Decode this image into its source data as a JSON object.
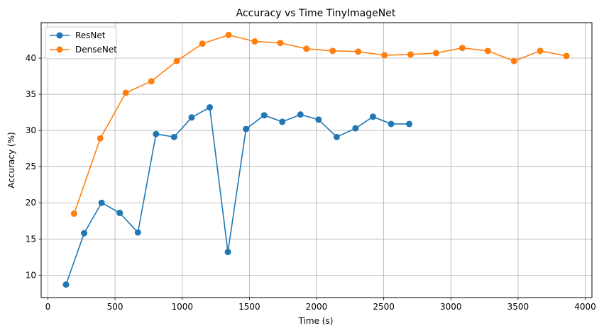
{
  "chart_data": {
    "type": "line",
    "title": "Accuracy vs Time TinyImageNet",
    "xlabel": "Time (s)",
    "ylabel": "Accuracy (%)",
    "xlim": [
      -50,
      4050
    ],
    "ylim": [
      6.9,
      44.9
    ],
    "x_ticks": [
      0,
      500,
      1000,
      1500,
      2000,
      2500,
      3000,
      3500,
      4000
    ],
    "y_ticks": [
      10,
      15,
      20,
      25,
      30,
      35,
      40
    ],
    "grid": true,
    "legend_position": "top-left",
    "series": [
      {
        "name": "ResNet",
        "color": "#1f77b4",
        "points": [
          [
            135,
            8.7
          ],
          [
            270,
            15.8
          ],
          [
            400,
            20.0
          ],
          [
            535,
            18.6
          ],
          [
            670,
            15.9
          ],
          [
            805,
            29.5
          ],
          [
            940,
            29.1
          ],
          [
            1070,
            31.8
          ],
          [
            1205,
            33.2
          ],
          [
            1340,
            13.2
          ],
          [
            1475,
            30.2
          ],
          [
            1610,
            32.1
          ],
          [
            1745,
            31.2
          ],
          [
            1880,
            32.2
          ],
          [
            2015,
            31.5
          ],
          [
            2150,
            29.1
          ],
          [
            2290,
            30.3
          ],
          [
            2420,
            31.9
          ],
          [
            2555,
            30.9
          ],
          [
            2690,
            30.9
          ]
        ]
      },
      {
        "name": "DenseNet",
        "color": "#ff7f0e",
        "points": [
          [
            195,
            18.5
          ],
          [
            390,
            28.9
          ],
          [
            580,
            35.2
          ],
          [
            770,
            36.8
          ],
          [
            960,
            39.6
          ],
          [
            1150,
            42.0
          ],
          [
            1345,
            43.2
          ],
          [
            1540,
            42.3
          ],
          [
            1730,
            42.1
          ],
          [
            1925,
            41.3
          ],
          [
            2120,
            41.0
          ],
          [
            2310,
            40.9
          ],
          [
            2505,
            40.4
          ],
          [
            2700,
            40.5
          ],
          [
            2890,
            40.7
          ],
          [
            3085,
            41.4
          ],
          [
            3275,
            41.0
          ],
          [
            3470,
            39.6
          ],
          [
            3665,
            41.0
          ],
          [
            3860,
            40.3
          ]
        ]
      }
    ]
  }
}
